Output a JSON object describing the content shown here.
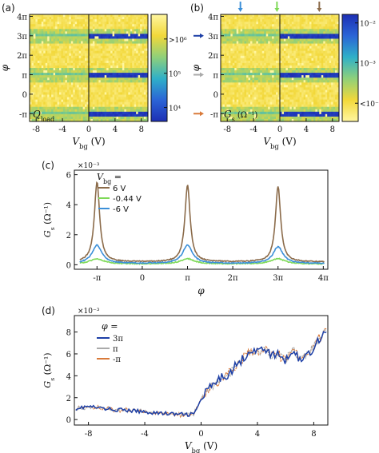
{
  "panels": {
    "a": {
      "tag": "(a)",
      "label": "Q",
      "label_sub": "load",
      "ylabel": "φ",
      "xlabel": "V",
      "xlabel_sub": "bg",
      "xlabel_unit": " (V)",
      "xticks": [
        "-8",
        "-4",
        "0",
        "4",
        "8"
      ],
      "xtick_values": [
        -8,
        -4,
        0,
        4,
        8
      ],
      "yticks": [
        "4π",
        "3π",
        "2π",
        "π",
        "0",
        "-π"
      ],
      "ytick_values": [
        4,
        3,
        2,
        1,
        0,
        -1
      ],
      "colorbar_ticks": [
        ">10⁶",
        "10⁵",
        "10⁴"
      ],
      "colorbar_tick_exponents": [
        6,
        5,
        4
      ],
      "colorbar_colors": [
        "#fff6a0",
        "#f2d83a",
        "#8fd07a",
        "#2fb0c8",
        "#2b64d6",
        "#1d2fb4"
      ]
    },
    "b": {
      "tag": "(b)",
      "label": "G",
      "label_sub": "s",
      "label_unit": " (Ω⁻¹)",
      "ylabel": "φ",
      "xlabel": "V",
      "xlabel_sub": "bg",
      "xlabel_unit": " (V)",
      "xticks": [
        "-8",
        "-4",
        "0",
        "4",
        "8"
      ],
      "xtick_values": [
        -8,
        -4,
        0,
        4,
        8
      ],
      "yticks": [
        "4π",
        "3π",
        "2π",
        "π",
        "0",
        "-π"
      ],
      "ytick_values": [
        4,
        3,
        2,
        1,
        0,
        -1
      ],
      "colorbar_ticks": [
        "10⁻²",
        "10⁻³",
        "<10⁻⁴"
      ],
      "colorbar_tick_exponents": [
        -2,
        -3,
        -4
      ],
      "top_markers": [
        {
          "x": -6,
          "color": "#3b8fd8"
        },
        {
          "x": -0.44,
          "color": "#7ed957"
        },
        {
          "x": 6,
          "color": "#8b6b4a"
        }
      ],
      "side_markers": [
        {
          "phi": 3,
          "color": "#1d3fa6"
        },
        {
          "phi": 1,
          "color": "#aaaaaa"
        },
        {
          "phi": -1,
          "color": "#d97a3a"
        }
      ]
    },
    "c": {
      "tag": "(c)",
      "ylabel": "G",
      "ylabel_sub": "s",
      "ylabel_unit": " (Ω⁻¹)",
      "xlabel": "φ",
      "exponent": "×10⁻³",
      "xticks": [
        "-π",
        "0",
        "π",
        "2π",
        "3π",
        "4π"
      ],
      "xtick_values": [
        -1,
        0,
        1,
        2,
        3,
        4
      ],
      "yticks": [
        "0",
        "2",
        "4",
        "6"
      ],
      "ytick_values": [
        0,
        2,
        4,
        6
      ],
      "legend_title": "V",
      "legend_title_sub": "bg",
      "legend_title_suffix": " =",
      "legend": [
        "6 V",
        "-0.44 V",
        "-6 V"
      ]
    },
    "d": {
      "tag": "(d)",
      "ylabel": "G",
      "ylabel_sub": "s",
      "ylabel_unit": " (Ω⁻¹)",
      "xlabel": "V",
      "xlabel_sub": "bg",
      "xlabel_unit": " (V)",
      "exponent": "×10⁻³",
      "xticks": [
        "-8",
        "-4",
        "0",
        "4",
        "8"
      ],
      "xtick_values": [
        -8,
        -4,
        0,
        4,
        8
      ],
      "yticks": [
        "0",
        "2",
        "4",
        "6",
        "8"
      ],
      "ytick_values": [
        0,
        2,
        4,
        6,
        8
      ],
      "legend_title": "φ",
      "legend_title_suffix": " =",
      "legend": [
        "3π",
        "π",
        "-π"
      ]
    }
  },
  "chart_data": [
    {
      "type": "heatmap",
      "panel": "a",
      "xlabel": "V_bg (V)",
      "ylabel": "φ",
      "xlim": [
        -9,
        9
      ],
      "ylim": [
        -1.4,
        4.1
      ],
      "ylim_units": "π",
      "colorbar": "log scale, 10^4 (blue) to >10^6 (yellow)",
      "features": "Dark blue horizontal bands at φ = -π, π, 3π; bands weaker/yellow-speckled for V_bg < 0, strong for V_bg > 0"
    },
    {
      "type": "heatmap",
      "panel": "b",
      "xlabel": "V_bg (V)",
      "ylabel": "φ",
      "xlim": [
        -9,
        9
      ],
      "ylim": [
        -1.4,
        4.1
      ],
      "ylim_units": "π",
      "colorbar": "log scale, <10^-4 (yellow) to 10^-2 (blue)",
      "features": "Bright blue conductance bands at φ = -π, π, 3π, strongest for V_bg > 0"
    },
    {
      "type": "line",
      "panel": "c",
      "xlabel": "φ",
      "ylabel": "G_s (Ω⁻¹)",
      "y_scale_factor": 0.001,
      "xlim": [
        -1.5,
        4.1
      ],
      "ylim": [
        -0.3,
        6.3
      ],
      "series": [
        {
          "name": "6 V",
          "color": "#8b6b4a",
          "peaks_at": [
            -1,
            1,
            3
          ],
          "peak_heights": [
            5.5,
            5.3,
            5.2
          ],
          "width": 0.07,
          "baseline": 0.18
        },
        {
          "name": "-0.44 V",
          "color": "#7ed957",
          "peaks_at": [
            -1,
            1,
            3
          ],
          "peak_heights": [
            0.4,
            0.4,
            0.4
          ],
          "width": 0.18,
          "baseline": 0.05
        },
        {
          "name": "-6 V",
          "color": "#3b8fd8",
          "peaks_at": [
            -1,
            1,
            3
          ],
          "peak_heights": [
            1.3,
            1.3,
            1.2
          ],
          "width": 0.13,
          "baseline": 0.08
        }
      ]
    },
    {
      "type": "line",
      "panel": "d",
      "xlabel": "V_bg (V)",
      "ylabel": "G_s (Ω⁻¹)",
      "y_scale_factor": 0.001,
      "xlim": [
        -9,
        9
      ],
      "ylim": [
        -0.5,
        9.5
      ],
      "series": [
        {
          "name": "3π",
          "color": "#1d3fa6"
        },
        {
          "name": "π",
          "color": "#aaaaaa"
        },
        {
          "name": "-π",
          "color": "#d97a3a"
        }
      ],
      "x": [
        -9,
        -8,
        -7,
        -6,
        -5,
        -4,
        -3,
        -2,
        -1,
        -0.5,
        0,
        0.5,
        1,
        1.5,
        2,
        2.5,
        3,
        3.5,
        4,
        4.5,
        5,
        5.5,
        6,
        6.5,
        7,
        7.5,
        8,
        8.5,
        9
      ],
      "values": [
        1.0,
        1.2,
        1.0,
        0.9,
        0.8,
        0.7,
        0.6,
        0.5,
        0.45,
        0.5,
        1.8,
        2.8,
        3.2,
        3.9,
        4.2,
        5.0,
        5.6,
        6.4,
        6.2,
        6.6,
        5.8,
        6.0,
        5.3,
        6.4,
        5.5,
        5.8,
        6.6,
        7.6,
        8.3
      ]
    }
  ]
}
